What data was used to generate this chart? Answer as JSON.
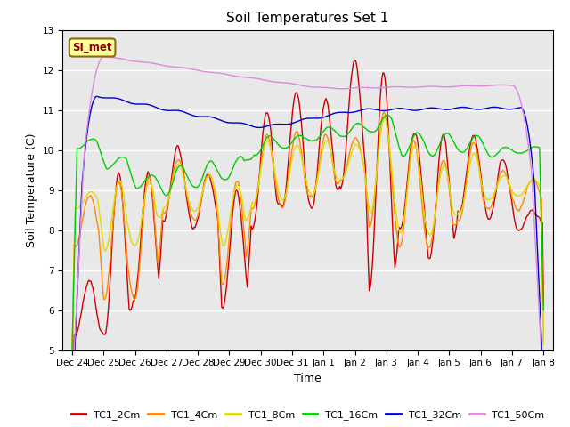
{
  "title": "Soil Temperatures Set 1",
  "xlabel": "Time",
  "ylabel": "Soil Temperature (C)",
  "ylim": [
    5.0,
    13.0
  ],
  "yticks": [
    5.0,
    6.0,
    7.0,
    8.0,
    9.0,
    10.0,
    11.0,
    12.0,
    13.0
  ],
  "xtick_labels": [
    "Dec 24",
    "Dec 25",
    "Dec 26",
    "Dec 27",
    "Dec 28",
    "Dec 29",
    "Dec 30",
    "Dec 31",
    "Jan 1",
    "Jan 2",
    "Jan 3",
    "Jan 4",
    "Jan 5",
    "Jan 6",
    "Jan 7",
    "Jan 8"
  ],
  "bg_color": "#e8e8e8",
  "annotation_text": "SI_met",
  "annotation_color": "#8B0000",
  "annotation_bg": "#ffff99",
  "annotation_border": "#8B6914",
  "series": [
    {
      "label": "TC1_2Cm",
      "color": "#cc0000"
    },
    {
      "label": "TC1_4Cm",
      "color": "#ff8800"
    },
    {
      "label": "TC1_8Cm",
      "color": "#dddd00"
    },
    {
      "label": "TC1_16Cm",
      "color": "#00cc00"
    },
    {
      "label": "TC1_32Cm",
      "color": "#0000cc"
    },
    {
      "label": "TC1_50Cm",
      "color": "#dd88dd"
    }
  ]
}
